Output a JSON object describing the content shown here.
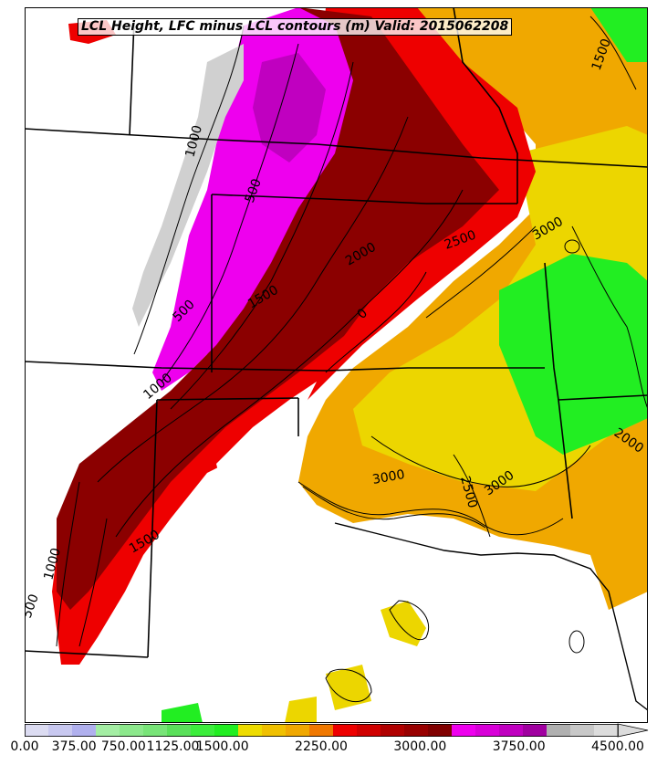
{
  "title": "LCL Height, LFC minus LCL contours (m) Valid: 2015062208",
  "colors": {
    "land_low": "#ffffff",
    "gray_light": "#d0d0d0",
    "gray_mid": "#b5b5b5",
    "magenta": "#ee00ee",
    "magenta_dark": "#c000c0",
    "dark_red": "#8b0000",
    "red_dark2": "#b00000",
    "red": "#ee0000",
    "orange": "#ee7a00",
    "orange_light": "#f0a800",
    "yellow": "#ecd600",
    "green": "#22ee22",
    "green_light": "#44e044"
  },
  "colorbar": {
    "colors": [
      "#dcdcf2",
      "#c8c8f0",
      "#b0b0ee",
      "#a4eea4",
      "#8ce88c",
      "#78e478",
      "#5ae05a",
      "#3cee3c",
      "#22ee22",
      "#eedc00",
      "#f0c000",
      "#f0a800",
      "#f07800",
      "#ee0000",
      "#d00000",
      "#b00000",
      "#980000",
      "#800000",
      "#ee00ee",
      "#d800d8",
      "#c000c0",
      "#a000a0",
      "#b0b0b0",
      "#c8c8c8",
      "#dcdcdc"
    ],
    "ticks": [
      "0.00",
      "375.00",
      "750.00",
      "1125.00",
      "1500.00",
      "2250.00",
      "3000.00",
      "3750.00",
      "4500.00"
    ],
    "tick_values": [
      0,
      375,
      750,
      1125,
      1500,
      2250,
      3000,
      3750,
      4500
    ],
    "extend": "max"
  },
  "contour_labels": [
    "500",
    "500",
    "500",
    "1000",
    "1000",
    "1000",
    "1500",
    "1500",
    "1500",
    "2000",
    "2000",
    "2500",
    "2500",
    "3000",
    "3000",
    "3000",
    "0"
  ]
}
